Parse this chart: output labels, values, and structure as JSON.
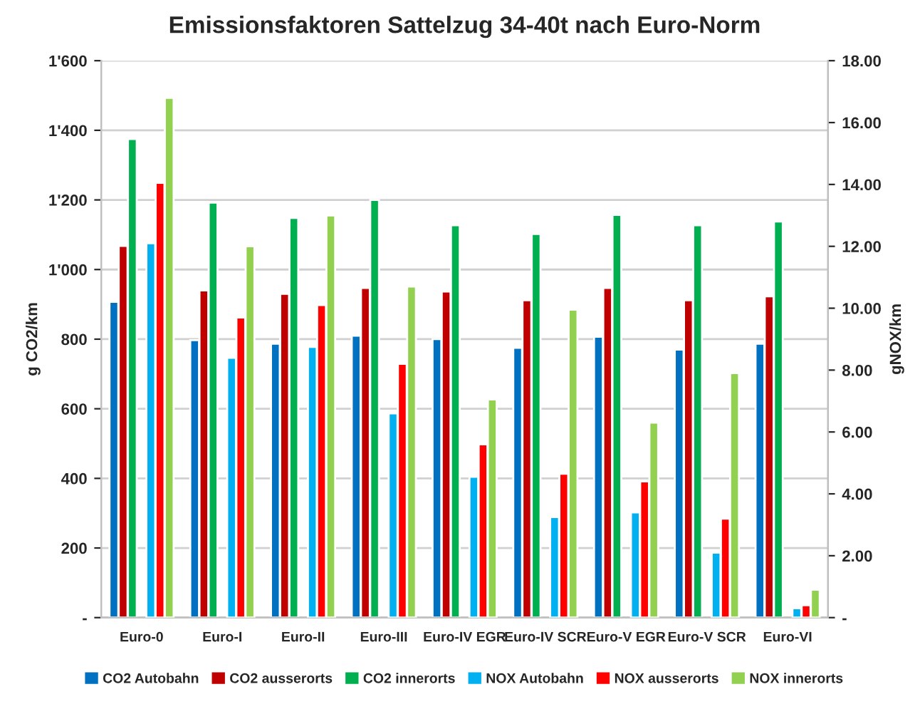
{
  "chart_data": {
    "type": "bar",
    "title": "Emissionsfaktoren Sattelzug 34-40t nach Euro-Norm",
    "ylabel": "g CO2/km",
    "y2label": "gNOX/km",
    "categories": [
      "Euro-0",
      "Euro-I",
      "Euro-II",
      "Euro-III",
      "Euro-IV EGR",
      "Euro-IV SCR",
      "Euro-V EGR",
      "Euro-V SCR",
      "Euro-VI"
    ],
    "series": [
      {
        "name": "CO2 Autobahn",
        "color": "#0070c0",
        "values": [
          907,
          797,
          787,
          810,
          800,
          775,
          807,
          770,
          787
        ]
      },
      {
        "name": "CO2 ausserorts",
        "color": "#c00000",
        "values": [
          1068,
          940,
          930,
          947,
          937,
          912,
          947,
          912,
          923
        ]
      },
      {
        "name": "CO2 innerorts",
        "color": "#00b050",
        "values": [
          1375,
          1192,
          1148,
          1200,
          1127,
          1102,
          1157,
          1127,
          1138
        ]
      },
      {
        "name": "NOX Autobahn",
        "color": "#00b0f0",
        "axis": "y2",
        "values": [
          12.1,
          8.4,
          8.75,
          6.6,
          4.55,
          3.25,
          3.4,
          2.1,
          0.3
        ]
      },
      {
        "name": "NOX ausserorts",
        "color": "#ff0000",
        "axis": "y2",
        "values": [
          14.05,
          9.7,
          10.1,
          8.2,
          5.6,
          4.65,
          4.4,
          3.2,
          0.4
        ]
      },
      {
        "name": "NOX innerorts",
        "color": "#92d050",
        "axis": "y2",
        "values": [
          16.8,
          12.0,
          13.0,
          10.7,
          7.05,
          9.95,
          6.3,
          7.9,
          0.9
        ]
      }
    ],
    "ylim": [
      0,
      1600
    ],
    "yticks": [
      {
        "value": 0,
        "label": "-"
      },
      200,
      400,
      600,
      800,
      {
        "value": 1000,
        "label": "1'000"
      },
      {
        "value": 1200,
        "label": "1'200"
      },
      {
        "value": 1400,
        "label": "1'400"
      },
      {
        "value": 1600,
        "label": "1'600"
      }
    ],
    "y2lim": [
      0,
      18
    ],
    "y2ticks": [
      {
        "value": 0,
        "label": "-"
      },
      {
        "value": 2,
        "label": "2.00"
      },
      {
        "value": 4,
        "label": "4.00"
      },
      {
        "value": 6,
        "label": "6.00"
      },
      {
        "value": 8,
        "label": "8.00"
      },
      {
        "value": 10,
        "label": "10.00"
      },
      {
        "value": 12,
        "label": "12.00"
      },
      {
        "value": 14,
        "label": "14.00"
      },
      {
        "value": 16,
        "label": "16.00"
      },
      {
        "value": 18,
        "label": "18.00"
      }
    ],
    "grid": "y",
    "legend": "bottom"
  }
}
